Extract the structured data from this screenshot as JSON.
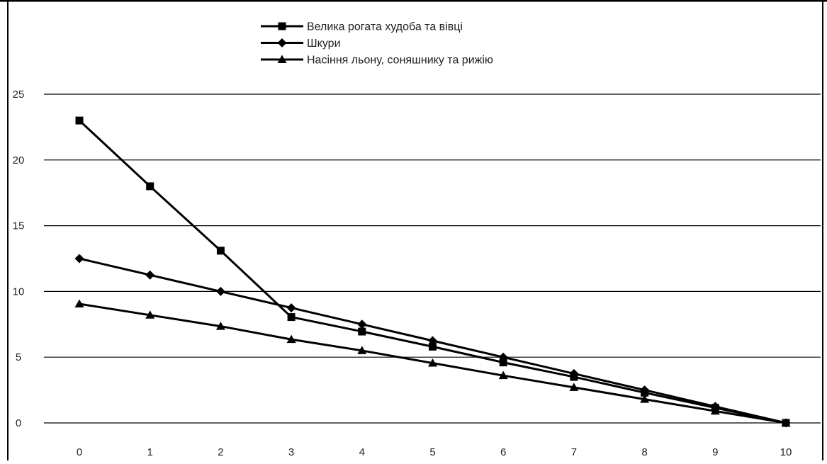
{
  "chart_data": {
    "type": "line",
    "title": "",
    "xlabel": "",
    "ylabel": "",
    "x": [
      0,
      1,
      2,
      3,
      4,
      5,
      6,
      7,
      8,
      9,
      10
    ],
    "xlim": [
      0,
      10
    ],
    "ylim": [
      0,
      25
    ],
    "y_ticks": [
      0,
      5,
      10,
      15,
      20,
      25
    ],
    "grid": "horizontal",
    "legend_position": "top-center",
    "series": [
      {
        "name": "Велика рогата худоба та вівці",
        "marker": "square",
        "color": "#000000",
        "values": [
          23,
          18,
          13.1,
          8.05,
          6.95,
          5.8,
          4.6,
          3.5,
          2.3,
          1.15,
          0
        ]
      },
      {
        "name": "Шкури",
        "marker": "diamond",
        "color": "#000000",
        "values": [
          12.5,
          11.25,
          10,
          8.75,
          7.5,
          6.25,
          5,
          3.75,
          2.5,
          1.25,
          0
        ]
      },
      {
        "name": "Насіння льону, соняшнику та рижію",
        "marker": "triangle",
        "color": "#000000",
        "values": [
          9.05,
          8.2,
          7.35,
          6.35,
          5.5,
          4.55,
          3.6,
          2.7,
          1.8,
          0.9,
          0
        ]
      }
    ]
  }
}
